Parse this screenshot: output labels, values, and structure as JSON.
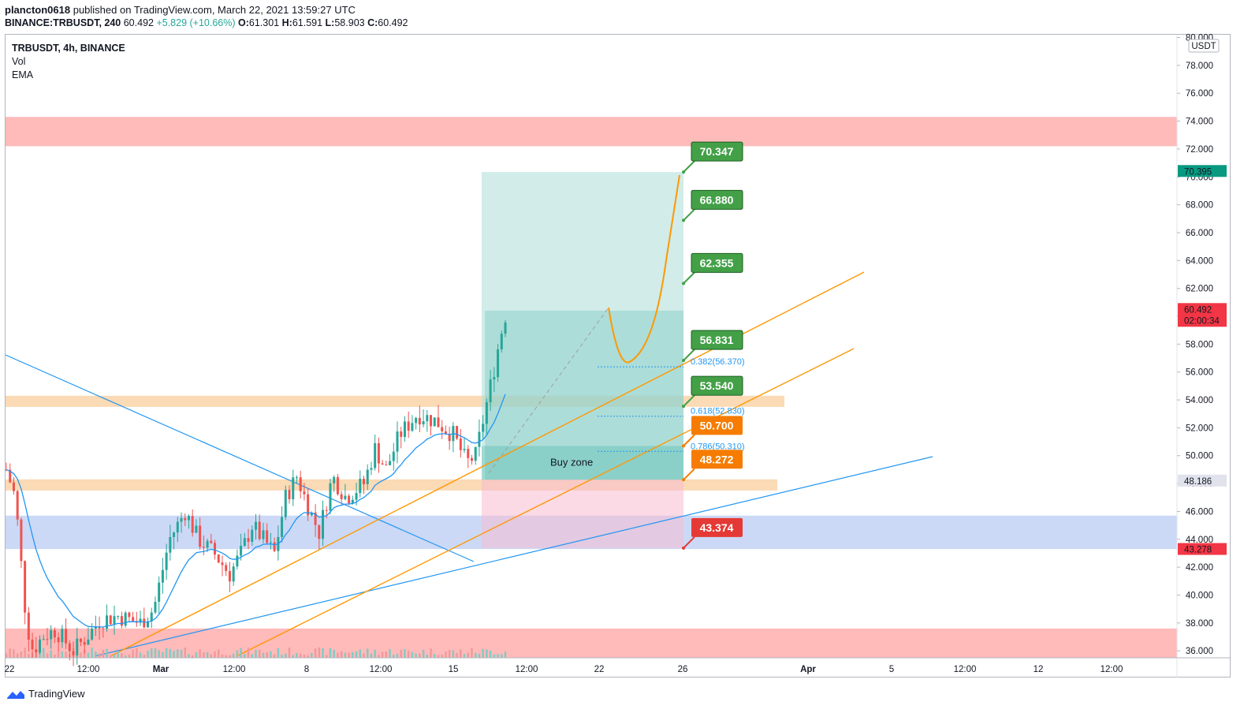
{
  "header": {
    "author": "plancton0618",
    "published": "published on TradingView.com, March 22, 2021 13:59:27 UTC",
    "symbol_line": "BINANCE:TRBUSDT, 240",
    "price": "60.492",
    "change": "+5.829 (+10.66%)",
    "o_label": "O:",
    "o": "61.301",
    "h_label": "H:",
    "h": "61.591",
    "l_label": "L:",
    "l": "58.903",
    "c_label": "C:",
    "c": "60.492"
  },
  "legend": {
    "title": "TRBUSDT, 4h, BINANCE",
    "items": [
      "Vol",
      "EMA"
    ]
  },
  "footer": {
    "brand": "TradingView"
  },
  "chart_data": {
    "type": "candlestick",
    "currency": "USDT",
    "y_ticks": [
      "80.000",
      "78.000",
      "76.000",
      "74.000",
      "72.000",
      "70.000",
      "68.000",
      "66.000",
      "64.000",
      "62.000",
      "60.000",
      "58.000",
      "56.000",
      "54.000",
      "52.000",
      "50.000",
      "48.000",
      "46.000",
      "44.000",
      "42.000",
      "40.000",
      "38.000",
      "36.000"
    ],
    "y_range": [
      35.5,
      80.2
    ],
    "x_ticks": [
      "22",
      "12:00",
      "Mar",
      "12:00",
      "8",
      "12:00",
      "15",
      "12:00",
      "22",
      "26",
      "Apr",
      "5",
      "12:00",
      "12",
      "12:00"
    ],
    "price_tags": [
      {
        "value": "70.395",
        "color": "#089981"
      },
      {
        "value": "60.492",
        "sub": "02:00:34",
        "color": "#f23645"
      },
      {
        "value": "48.186",
        "color": "#e0e3eb"
      },
      {
        "value": "43.278",
        "color": "#f23645"
      }
    ],
    "targets": [
      {
        "label": "70.347",
        "price": 70.347,
        "color": "#43a047"
      },
      {
        "label": "66.880",
        "price": 66.88,
        "color": "#43a047"
      },
      {
        "label": "62.355",
        "price": 62.355,
        "color": "#43a047"
      },
      {
        "label": "56.831",
        "price": 56.831,
        "color": "#43a047"
      },
      {
        "label": "53.540",
        "price": 53.54,
        "color": "#43a047"
      },
      {
        "label": "50.700",
        "price": 50.7,
        "color": "#f57c00"
      },
      {
        "label": "48.272",
        "price": 48.272,
        "color": "#f57c00"
      },
      {
        "label": "43.374",
        "price": 43.374,
        "color": "#e53935"
      }
    ],
    "fib_levels": [
      {
        "label": "0.382(56.370)",
        "price": 56.37
      },
      {
        "label": "0.618(52.830)",
        "price": 52.83
      },
      {
        "label": "0.786(50.310)",
        "price": 50.31
      }
    ],
    "annotation": "Buy zone",
    "zones": [
      {
        "type": "resistance",
        "from": 72.2,
        "to": 74.3
      },
      {
        "type": "support",
        "from": 35.5,
        "to": 37.6
      },
      {
        "type": "demand",
        "from": 43.3,
        "to": 45.7
      },
      {
        "type": "level",
        "from": 53.5,
        "to": 54.3
      },
      {
        "type": "level",
        "from": 47.5,
        "to": 48.3
      }
    ]
  }
}
